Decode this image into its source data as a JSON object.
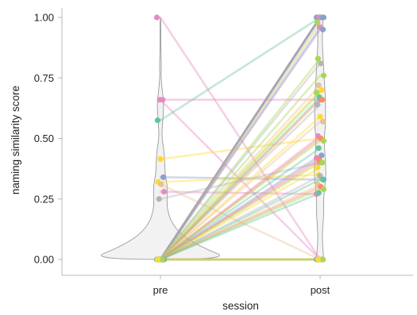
{
  "chart_data": {
    "type": "scatter",
    "subtype": "violin-paired-slopegraph",
    "title": "",
    "xlabel": "session",
    "ylabel": "naming similarity score",
    "categories": [
      "pre",
      "post"
    ],
    "ylim": [
      -0.06,
      1.06
    ],
    "yticks": [
      0,
      0.25,
      0.5,
      0.75,
      1.0
    ],
    "ytick_labels": [
      "0.00",
      "0.25",
      "0.50",
      "0.75",
      "1.00"
    ],
    "grid": false,
    "legend": "none",
    "colors": {
      "violin_fill": "#f2f2f2",
      "violin_stroke": "#9a9a9a",
      "axis": "#b8b8b8",
      "text": "#222222"
    },
    "palette": [
      "#66c2a5",
      "#fc8d62",
      "#8da0cb",
      "#e78ac3",
      "#a6d854",
      "#ffd92f",
      "#e5c494",
      "#b3b3b3"
    ],
    "violins": [
      {
        "category": "pre",
        "density_y": [
          0.0,
          0.05,
          0.1,
          0.15,
          0.2,
          0.25,
          0.3,
          0.35,
          0.4,
          0.45,
          0.5,
          0.55,
          0.6,
          0.65,
          0.7,
          0.75,
          0.8,
          0.85,
          0.9,
          0.95,
          1.0
        ],
        "density_w": [
          1.0,
          0.58,
          0.3,
          0.16,
          0.1,
          0.09,
          0.1,
          0.065,
          0.06,
          0.05,
          0.02,
          0.025,
          0.04,
          0.045,
          0.025,
          0.008,
          0.012,
          0.008,
          0.006,
          0.005,
          0.004
        ]
      },
      {
        "category": "post",
        "density_y": [
          0.0,
          0.05,
          0.1,
          0.15,
          0.2,
          0.25,
          0.3,
          0.35,
          0.4,
          0.45,
          0.5,
          0.55,
          0.6,
          0.65,
          0.7,
          0.75,
          0.8,
          0.85,
          0.9,
          0.95,
          1.0
        ],
        "density_w": [
          0.14,
          0.1,
          0.08,
          0.11,
          0.14,
          0.13,
          0.17,
          0.22,
          0.2,
          0.17,
          0.15,
          0.2,
          0.2,
          0.2,
          0.18,
          0.15,
          0.13,
          0.1,
          0.08,
          0.09,
          0.12
        ]
      }
    ],
    "pairs": [
      {
        "pre": 1.0,
        "post": 0.0,
        "color": "#e78ac3"
      },
      {
        "pre": 0.66,
        "post": 0.66,
        "color": "#e78ac3"
      },
      {
        "pre": 0.66,
        "post": 0.0,
        "color": "#e78ac3"
      },
      {
        "pre": 0.575,
        "post": 1.0,
        "color": "#66c2a5"
      },
      {
        "pre": 0.415,
        "post": 0.5,
        "color": "#ffd92f"
      },
      {
        "pre": 0.34,
        "post": 0.33,
        "color": "#8da0cb"
      },
      {
        "pre": 0.32,
        "post": 0.35,
        "color": "#ffd92f"
      },
      {
        "pre": 0.31,
        "post": 0.0,
        "color": "#e5c494"
      },
      {
        "pre": 0.28,
        "post": 0.27,
        "color": "#e78ac3"
      },
      {
        "pre": 0.25,
        "post": 0.4,
        "color": "#b3b3b3"
      },
      {
        "pre": 0.0,
        "post": 1.0,
        "color": "#8da0cb"
      },
      {
        "pre": 0.0,
        "post": 1.0,
        "color": "#e78ac3"
      },
      {
        "pre": 0.0,
        "post": 1.0,
        "color": "#8da0cb"
      },
      {
        "pre": 0.0,
        "post": 1.0,
        "color": "#fc8d62"
      },
      {
        "pre": 0.0,
        "post": 1.0,
        "color": "#b3b3b3"
      },
      {
        "pre": 0.0,
        "post": 1.0,
        "color": "#e78ac3"
      },
      {
        "pre": 0.0,
        "post": 1.0,
        "color": "#8da0cb"
      },
      {
        "pre": 0.0,
        "post": 1.0,
        "color": "#66c2a5"
      },
      {
        "pre": 0.0,
        "post": 1.0,
        "color": "#e5c494"
      },
      {
        "pre": 0.0,
        "post": 1.0,
        "color": "#8da0cb"
      },
      {
        "pre": 0.0,
        "post": 1.0,
        "color": "#e78ac3"
      },
      {
        "pre": 0.0,
        "post": 1.0,
        "color": "#8da0cb"
      },
      {
        "pre": 0.0,
        "post": 0.98,
        "color": "#a6d854"
      },
      {
        "pre": 0.0,
        "post": 0.96,
        "color": "#e78ac3"
      },
      {
        "pre": 0.0,
        "post": 0.95,
        "color": "#8da0cb"
      },
      {
        "pre": 0.0,
        "post": 0.83,
        "color": "#a6d854"
      },
      {
        "pre": 0.0,
        "post": 0.81,
        "color": "#b3b3b3"
      },
      {
        "pre": 0.0,
        "post": 0.76,
        "color": "#a6d854"
      },
      {
        "pre": 0.0,
        "post": 0.72,
        "color": "#e5c494"
      },
      {
        "pre": 0.0,
        "post": 0.7,
        "color": "#ffd92f"
      },
      {
        "pre": 0.0,
        "post": 0.69,
        "color": "#a6d854"
      },
      {
        "pre": 0.0,
        "post": 0.67,
        "color": "#66c2a5"
      },
      {
        "pre": 0.0,
        "post": 0.66,
        "color": "#fc8d62"
      },
      {
        "pre": 0.0,
        "post": 0.64,
        "color": "#b3b3b3"
      },
      {
        "pre": 0.0,
        "post": 0.59,
        "color": "#ffd92f"
      },
      {
        "pre": 0.0,
        "post": 0.57,
        "color": "#e5c494"
      },
      {
        "pre": 0.0,
        "post": 0.51,
        "color": "#e78ac3"
      },
      {
        "pre": 0.0,
        "post": 0.5,
        "color": "#fc8d62"
      },
      {
        "pre": 0.0,
        "post": 0.49,
        "color": "#a6d854"
      },
      {
        "pre": 0.0,
        "post": 0.46,
        "color": "#66c2a5"
      },
      {
        "pre": 0.0,
        "post": 0.43,
        "color": "#8da0cb"
      },
      {
        "pre": 0.0,
        "post": 0.42,
        "color": "#e78ac3"
      },
      {
        "pre": 0.0,
        "post": 0.41,
        "color": "#fc8d62"
      },
      {
        "pre": 0.0,
        "post": 0.4,
        "color": "#a6d854"
      },
      {
        "pre": 0.0,
        "post": 0.38,
        "color": "#ffd92f"
      },
      {
        "pre": 0.0,
        "post": 0.345,
        "color": "#b3b3b3"
      },
      {
        "pre": 0.0,
        "post": 0.33,
        "color": "#66c2a5"
      },
      {
        "pre": 0.0,
        "post": 0.31,
        "color": "#e5c494"
      },
      {
        "pre": 0.0,
        "post": 0.3,
        "color": "#fc8d62"
      },
      {
        "pre": 0.0,
        "post": 0.29,
        "color": "#a6d854"
      },
      {
        "pre": 0.0,
        "post": 0.275,
        "color": "#66c2a5"
      },
      {
        "pre": 0.0,
        "post": 0.0,
        "color": "#e78ac3"
      },
      {
        "pre": 0.0,
        "post": 0.0,
        "color": "#8da0cb"
      },
      {
        "pre": 0.0,
        "post": 0.0,
        "color": "#fc8d62"
      },
      {
        "pre": 0.0,
        "post": 0.0,
        "color": "#b3b3b3"
      },
      {
        "pre": 0.0,
        "post": 0.0,
        "color": "#66c2a5"
      },
      {
        "pre": 0.0,
        "post": 0.0,
        "color": "#e5c494"
      },
      {
        "pre": 0.0,
        "post": 0.0,
        "color": "#a6d854"
      },
      {
        "pre": 0.0,
        "post": 0.0,
        "color": "#ffd92f"
      }
    ]
  }
}
